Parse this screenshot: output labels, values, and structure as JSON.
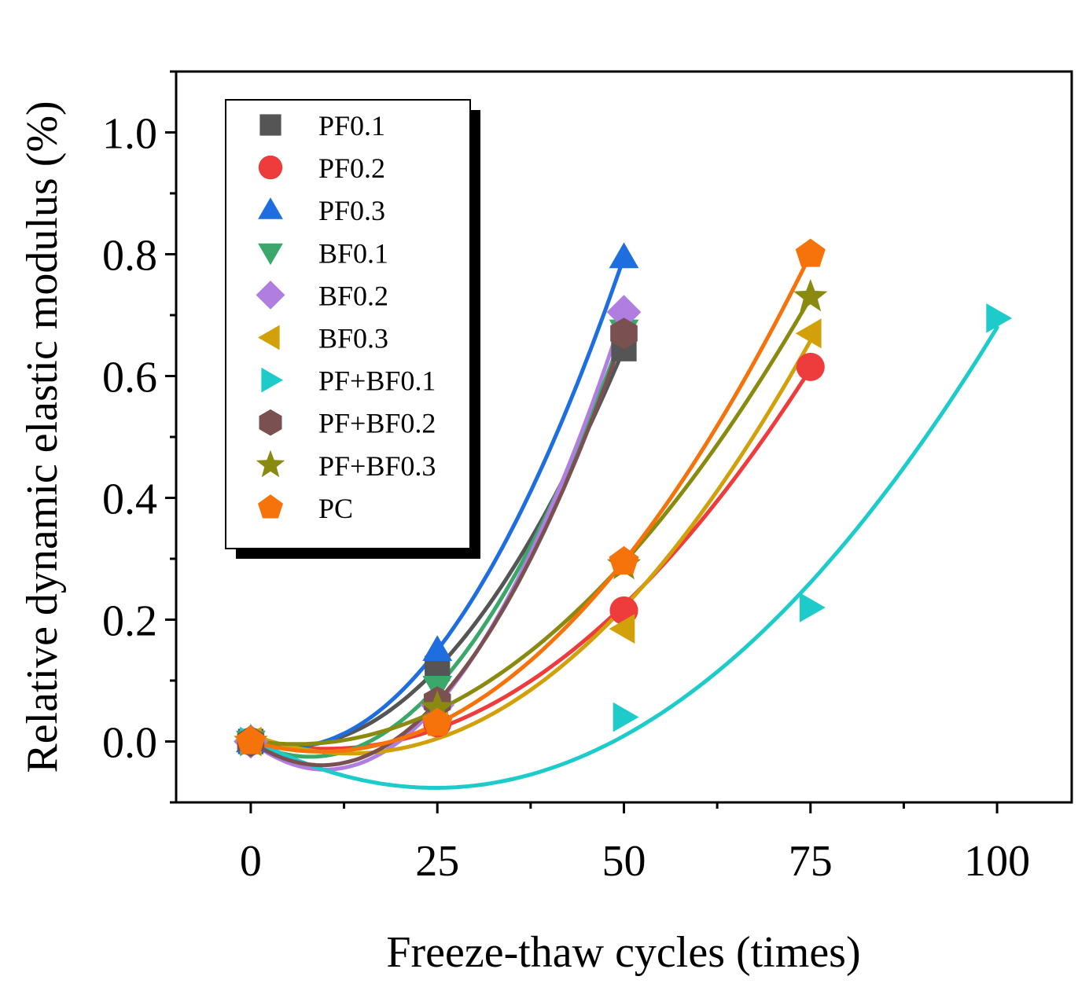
{
  "chart_data": {
    "type": "scatter",
    "title": "",
    "xlabel": "Freeze-thaw cycles (times)",
    "ylabel": "Relative dynamic elastic modulus (%)",
    "xlim": [
      -10,
      110
    ],
    "ylim": [
      -0.1,
      1.1
    ],
    "xticks": [
      0,
      25,
      50,
      75,
      100
    ],
    "yticks": [
      0.0,
      0.2,
      0.4,
      0.6,
      0.8,
      1.0
    ],
    "xtick_labels": [
      "0",
      "25",
      "50",
      "75",
      "100"
    ],
    "ytick_labels": [
      "0.0",
      "0.2",
      "0.4",
      "0.6",
      "0.8",
      "1.0"
    ],
    "legend_position": "top-left",
    "fit": "quadratic",
    "series": [
      {
        "name": "PF0.1",
        "marker": "square",
        "color": "#555555",
        "x": [
          0,
          25,
          50
        ],
        "y": [
          0.0,
          0.12,
          0.645
        ]
      },
      {
        "name": "PF0.2",
        "marker": "circle",
        "color": "#ee3b3b",
        "x": [
          0,
          25,
          50,
          75
        ],
        "y": [
          0.0,
          0.03,
          0.215,
          0.615
        ]
      },
      {
        "name": "PF0.3",
        "marker": "triangle-up",
        "color": "#1f6ee0",
        "x": [
          0,
          25,
          50
        ],
        "y": [
          0.0,
          0.15,
          0.795
        ]
      },
      {
        "name": "BF0.1",
        "marker": "triangle-down",
        "color": "#3aa86a",
        "x": [
          0,
          25,
          50
        ],
        "y": [
          0.0,
          0.09,
          0.675
        ]
      },
      {
        "name": "BF0.2",
        "marker": "diamond",
        "color": "#b07ee0",
        "x": [
          0,
          25,
          50
        ],
        "y": [
          0.0,
          0.06,
          0.705
        ]
      },
      {
        "name": "BF0.3",
        "marker": "triangle-left",
        "color": "#d2a10a",
        "x": [
          0,
          25,
          50,
          75
        ],
        "y": [
          0.0,
          0.04,
          0.185,
          0.67
        ]
      },
      {
        "name": "PF+BF0.1",
        "marker": "triangle-right",
        "color": "#1ecbcb",
        "x": [
          0,
          50,
          75,
          100
        ],
        "y": [
          0.0,
          0.04,
          0.22,
          0.695
        ]
      },
      {
        "name": "PF+BF0.2",
        "marker": "hexagon",
        "color": "#7a5050",
        "x": [
          0,
          25,
          50
        ],
        "y": [
          0.0,
          0.065,
          0.67
        ]
      },
      {
        "name": "PF+BF0.3",
        "marker": "star",
        "color": "#8a8a10",
        "x": [
          0,
          25,
          50,
          75
        ],
        "y": [
          0.0,
          0.055,
          0.29,
          0.73
        ]
      },
      {
        "name": "PC",
        "marker": "pentagon",
        "color": "#f5730a",
        "x": [
          0,
          25,
          50,
          75
        ],
        "y": [
          0.0,
          0.03,
          0.295,
          0.8
        ]
      }
    ]
  }
}
